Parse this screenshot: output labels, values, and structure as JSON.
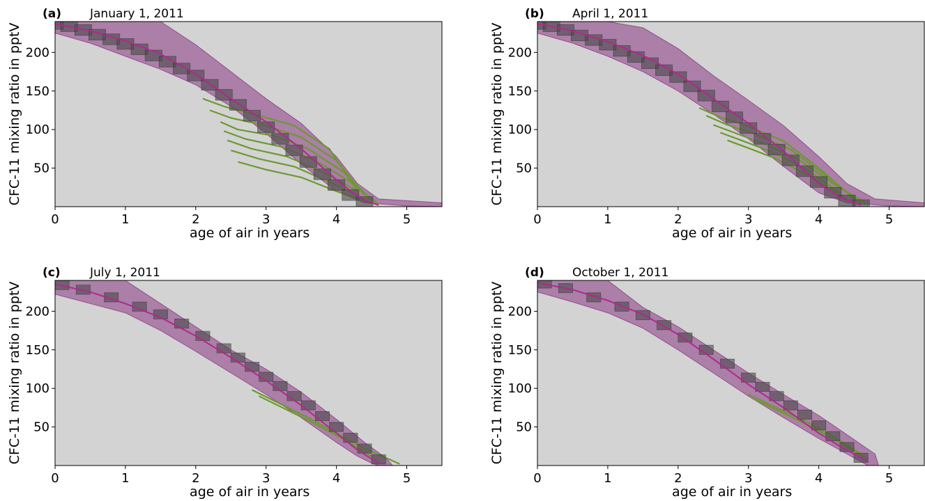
{
  "colors": {
    "background": "#d3d3d3",
    "band": "#8b3a83",
    "green": "#6b9a2e",
    "mean_line": "#b0288c",
    "boxes": "#4a4a4a"
  },
  "chart_data": [
    {
      "type": "line",
      "panel": "(a)",
      "title": "January 1, 2011",
      "xlabel": "age of air in years",
      "ylabel": "CFC-11 mixing ratio in pptV",
      "xlim": [
        0,
        5.5
      ],
      "ylim": [
        0,
        240
      ],
      "xticks": [
        "0",
        "1",
        "2",
        "3",
        "4",
        "5"
      ],
      "yticks": [
        "50",
        "100",
        "150",
        "200"
      ],
      "grid": false,
      "mean": {
        "x": [
          0,
          0.5,
          1.0,
          1.5,
          2.0,
          2.5,
          3.0,
          3.5,
          4.0,
          4.2,
          4.4,
          4.6
        ],
        "y": [
          237,
          228,
          215,
          198,
          172,
          140,
          110,
          75,
          35,
          20,
          8,
          2
        ]
      },
      "band_upper": {
        "x": [
          0,
          0.5,
          1.0,
          1.5,
          2.0,
          2.5,
          3.0,
          3.5,
          4.0,
          4.3,
          4.6,
          5.5
        ],
        "y": [
          240,
          240,
          240,
          240,
          210,
          175,
          140,
          108,
          65,
          30,
          10,
          5
        ]
      },
      "band_lower": {
        "x": [
          0,
          0.5,
          1.0,
          1.5,
          2.0,
          2.5,
          3.0,
          3.5,
          4.0,
          4.4,
          5.0,
          5.5
        ],
        "y": [
          225,
          212,
          195,
          178,
          158,
          130,
          95,
          55,
          20,
          5,
          1,
          0
        ]
      },
      "boxes": {
        "x": [
          0,
          0.2,
          0.4,
          0.6,
          0.8,
          1.0,
          1.2,
          1.4,
          1.6,
          1.8,
          2.0,
          2.2,
          2.4,
          2.6,
          2.8,
          3.0,
          3.2,
          3.4,
          3.6,
          3.8,
          4.0,
          4.2,
          4.4
        ],
        "y": [
          237,
          234,
          229,
          223,
          217,
          211,
          204,
          196,
          188,
          179,
          170,
          158,
          145,
          132,
          118,
          103,
          88,
          73,
          58,
          42,
          28,
          15,
          6
        ],
        "half_width": 0.12,
        "half_height": 7
      },
      "green_curves": [
        {
          "x": [
            2.1,
            2.4,
            2.9,
            3.4,
            3.9,
            4.3
          ],
          "y": [
            140,
            130,
            118,
            105,
            75,
            20
          ]
        },
        {
          "x": [
            2.2,
            2.5,
            3.0,
            3.5,
            4.0,
            4.4
          ],
          "y": [
            125,
            115,
            105,
            90,
            60,
            15
          ]
        },
        {
          "x": [
            2.35,
            2.6,
            3.1,
            3.6,
            4.1,
            4.5
          ],
          "y": [
            110,
            100,
            92,
            75,
            45,
            8
          ]
        },
        {
          "x": [
            2.4,
            2.7,
            3.2,
            3.7,
            4.2,
            4.6
          ],
          "y": [
            98,
            88,
            78,
            60,
            32,
            3
          ]
        },
        {
          "x": [
            2.45,
            2.8,
            3.3,
            3.8,
            4.3
          ],
          "y": [
            86,
            75,
            65,
            45,
            20
          ]
        },
        {
          "x": [
            2.5,
            2.9,
            3.4,
            3.9,
            4.4
          ],
          "y": [
            73,
            62,
            52,
            32,
            10
          ]
        },
        {
          "x": [
            2.6,
            3.0,
            3.5,
            4.0,
            4.5
          ],
          "y": [
            58,
            48,
            38,
            20,
            4
          ]
        }
      ]
    },
    {
      "type": "line",
      "panel": "(b)",
      "title": "April 1, 2011",
      "xlabel": "age of air in years",
      "ylabel": "CFC-11 mixing ratio in pptV",
      "xlim": [
        0,
        5.5
      ],
      "ylim": [
        0,
        240
      ],
      "xticks": [
        "0",
        "1",
        "2",
        "3",
        "4",
        "5"
      ],
      "yticks": [
        "50",
        "100",
        "150",
        "200"
      ],
      "grid": false,
      "mean": {
        "x": [
          0,
          0.5,
          1.0,
          1.5,
          2.0,
          2.5,
          3.0,
          3.5,
          4.0,
          4.3,
          4.6
        ],
        "y": [
          237,
          228,
          214,
          196,
          172,
          140,
          108,
          72,
          30,
          12,
          2
        ]
      },
      "band_upper": {
        "x": [
          0,
          0.5,
          1.0,
          1.5,
          2.0,
          2.5,
          3.0,
          3.5,
          4.0,
          4.4,
          4.8,
          5.5
        ],
        "y": [
          240,
          240,
          240,
          232,
          205,
          170,
          138,
          105,
          65,
          30,
          10,
          5
        ]
      },
      "band_lower": {
        "x": [
          0,
          0.5,
          1.0,
          1.5,
          2.0,
          2.5,
          3.0,
          3.5,
          4.0,
          4.4,
          5.0,
          5.5
        ],
        "y": [
          225,
          212,
          195,
          175,
          150,
          120,
          88,
          52,
          18,
          5,
          1,
          0
        ]
      },
      "boxes": {
        "x": [
          0,
          0.2,
          0.4,
          0.6,
          0.8,
          1.0,
          1.2,
          1.4,
          1.6,
          1.8,
          2.0,
          2.2,
          2.4,
          2.6,
          2.8,
          3.0,
          3.2,
          3.4,
          3.6,
          3.8,
          4.0,
          4.2,
          4.4,
          4.6
        ],
        "y": [
          237,
          234,
          229,
          222,
          216,
          210,
          202,
          194,
          186,
          177,
          168,
          156,
          144,
          130,
          116,
          102,
          88,
          74,
          60,
          46,
          32,
          18,
          8,
          2
        ],
        "half_width": 0.12,
        "half_height": 7
      },
      "green_curves": [
        {
          "x": [
            2.3,
            2.6,
            3.0,
            3.5,
            4.0,
            4.5
          ],
          "y": [
            128,
            116,
            104,
            85,
            50,
            10
          ]
        },
        {
          "x": [
            2.4,
            2.7,
            3.1,
            3.6,
            4.1,
            4.6
          ],
          "y": [
            118,
            106,
            94,
            74,
            40,
            5
          ]
        },
        {
          "x": [
            2.5,
            2.8,
            3.2,
            3.7,
            4.2,
            4.7
          ],
          "y": [
            106,
            96,
            82,
            62,
            30,
            3
          ]
        },
        {
          "x": [
            2.6,
            2.9,
            3.3,
            3.8,
            4.3
          ],
          "y": [
            96,
            86,
            72,
            50,
            18
          ]
        },
        {
          "x": [
            2.7,
            3.0,
            3.4,
            3.9,
            4.4
          ],
          "y": [
            86,
            76,
            62,
            38,
            10
          ]
        }
      ]
    },
    {
      "type": "line",
      "panel": "(c)",
      "title": "July 1, 2011",
      "xlabel": "age of air in years",
      "ylabel": "CFC-11 mixing ratio in pptV",
      "xlim": [
        0,
        5.5
      ],
      "ylim": [
        0,
        240
      ],
      "xticks": [
        "0",
        "1",
        "2",
        "3",
        "4",
        "5"
      ],
      "yticks": [
        "50",
        "100",
        "150",
        "200"
      ],
      "grid": false,
      "mean": {
        "x": [
          0,
          0.5,
          1.0,
          1.5,
          2.0,
          2.5,
          3.0,
          3.5,
          4.0,
          4.3,
          4.6
        ],
        "y": [
          235,
          225,
          210,
          192,
          168,
          140,
          110,
          78,
          42,
          20,
          3
        ]
      },
      "band_upper": {
        "x": [
          0,
          0.5,
          1.0,
          1.5,
          2.0,
          2.5,
          3.0,
          3.5,
          4.0,
          4.4,
          4.7,
          4.8
        ],
        "y": [
          240,
          240,
          240,
          210,
          180,
          150,
          125,
          95,
          60,
          30,
          10,
          0
        ]
      },
      "band_lower": {
        "x": [
          0,
          0.5,
          1.0,
          1.5,
          2.0,
          2.5,
          3.0,
          3.5,
          4.0,
          4.3,
          4.5,
          4.6
        ],
        "y": [
          222,
          210,
          198,
          175,
          148,
          120,
          92,
          62,
          30,
          12,
          3,
          0
        ]
      },
      "boxes": {
        "x": [
          0.1,
          0.4,
          0.8,
          1.2,
          1.5,
          1.8,
          2.1,
          2.4,
          2.6,
          2.8,
          3.0,
          3.2,
          3.4,
          3.6,
          3.8,
          4.0,
          4.2,
          4.4,
          4.6
        ],
        "y": [
          234,
          228,
          218,
          206,
          196,
          184,
          168,
          152,
          140,
          128,
          115,
          103,
          90,
          78,
          64,
          50,
          36,
          22,
          8
        ],
        "half_width": 0.1,
        "half_height": 6
      },
      "green_curves": [
        {
          "x": [
            2.8,
            3.2,
            3.6,
            4.0,
            4.4,
            4.9
          ],
          "y": [
            98,
            80,
            62,
            42,
            22,
            2
          ]
        },
        {
          "x": [
            2.9,
            3.3,
            3.7,
            4.1,
            4.5
          ],
          "y": [
            90,
            72,
            54,
            34,
            12
          ]
        }
      ]
    },
    {
      "type": "line",
      "panel": "(d)",
      "title": "October 1, 2011",
      "xlabel": "age of air in years",
      "ylabel": "CFC-11 mixing ratio in pptV",
      "xlim": [
        0,
        5.5
      ],
      "ylim": [
        0,
        240
      ],
      "xticks": [
        "0",
        "1",
        "2",
        "3",
        "4",
        "5"
      ],
      "yticks": [
        "50",
        "100",
        "150",
        "200"
      ],
      "grid": false,
      "mean": {
        "x": [
          0,
          0.5,
          1.0,
          1.5,
          2.0,
          2.5,
          3.0,
          3.5,
          4.0,
          4.3,
          4.7
        ],
        "y": [
          237,
          228,
          214,
          196,
          170,
          138,
          105,
          75,
          42,
          25,
          5
        ]
      },
      "band_upper": {
        "x": [
          0,
          0.5,
          1.0,
          1.5,
          2.0,
          2.5,
          3.0,
          3.5,
          4.0,
          4.4,
          4.8,
          4.85
        ],
        "y": [
          240,
          240,
          240,
          205,
          180,
          150,
          120,
          92,
          65,
          40,
          15,
          0
        ]
      },
      "band_lower": {
        "x": [
          0,
          0.5,
          1.0,
          1.5,
          2.0,
          2.5,
          3.0,
          3.5,
          4.0,
          4.4,
          4.6,
          4.7
        ],
        "y": [
          225,
          212,
          198,
          178,
          150,
          120,
          90,
          62,
          35,
          15,
          5,
          0
        ]
      },
      "boxes": {
        "x": [
          0.1,
          0.4,
          0.8,
          1.2,
          1.5,
          1.8,
          2.1,
          2.4,
          2.7,
          3.0,
          3.2,
          3.4,
          3.6,
          3.8,
          4.0,
          4.2,
          4.4,
          4.6
        ],
        "y": [
          236,
          230,
          218,
          206,
          195,
          182,
          166,
          150,
          132,
          114,
          102,
          90,
          78,
          66,
          52,
          38,
          24,
          10
        ],
        "half_width": 0.1,
        "half_height": 6
      },
      "green_curves": [
        {
          "x": [
            3.0,
            3.4,
            3.8,
            4.2,
            4.6
          ],
          "y": [
            92,
            75,
            58,
            38,
            15
          ]
        },
        {
          "x": [
            3.1,
            3.5,
            3.9,
            4.3,
            4.7
          ],
          "y": [
            85,
            68,
            50,
            30,
            8
          ]
        }
      ]
    }
  ]
}
